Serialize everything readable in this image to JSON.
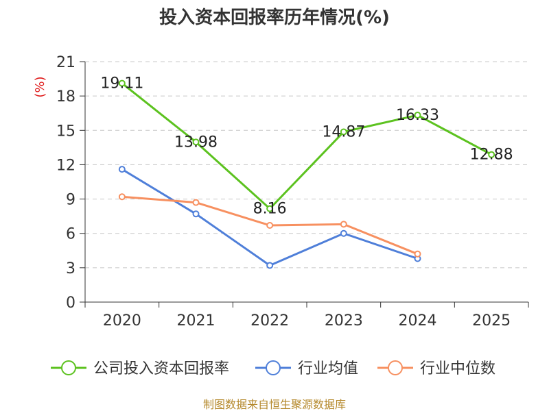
{
  "chart_data": {
    "type": "line",
    "title": "投入资本回报率历年情况(%)",
    "ylabel": "(%)",
    "xlabel": "",
    "categories": [
      "2020",
      "2021",
      "2022",
      "2023",
      "2024",
      "2025"
    ],
    "ylim": [
      0,
      21
    ],
    "yticks": [
      0,
      3,
      6,
      9,
      12,
      15,
      18,
      21
    ],
    "grid": true,
    "legend_position": "bottom",
    "series": [
      {
        "name": "公司投入资本回报率",
        "color": "#5cc21f",
        "values": [
          19.11,
          13.98,
          8.16,
          14.87,
          16.33,
          12.88
        ],
        "labels": [
          "19.11",
          "13.98",
          "8.16",
          "14.87",
          "16.33",
          "12.88"
        ]
      },
      {
        "name": "行业均值",
        "color": "#4f7fd9",
        "values": [
          11.6,
          7.7,
          3.2,
          6.0,
          3.8,
          null
        ]
      },
      {
        "name": "行业中位数",
        "color": "#f79060",
        "values": [
          9.2,
          8.7,
          6.7,
          6.8,
          4.2,
          null
        ]
      }
    ]
  },
  "footer": {
    "source": "制图数据来自恒生聚源数据库"
  }
}
